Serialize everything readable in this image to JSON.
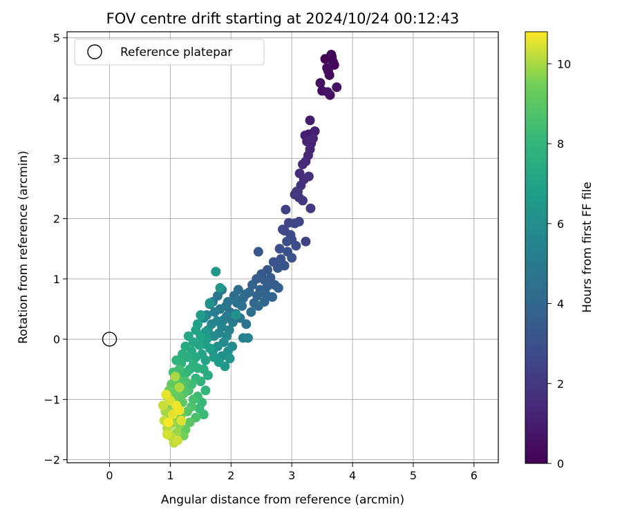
{
  "chart_data": {
    "type": "scatter",
    "title": "FOV centre drift starting at 2024/10/24 00:12:43",
    "xlabel": "Angular distance from reference (arcmin)",
    "ylabel": "Rotation from reference (arcmin)",
    "xlim": [
      -0.7,
      6.4
    ],
    "ylim": [
      -2.05,
      5.1
    ],
    "xticks": [
      0,
      1,
      2,
      3,
      4,
      5,
      6
    ],
    "yticks": [
      -2,
      -1,
      0,
      1,
      2,
      3,
      4,
      5
    ],
    "grid": true,
    "legend": {
      "position": "top-left",
      "entries": [
        "Reference platepar"
      ]
    },
    "reference_point": {
      "x": 0,
      "y": 0,
      "label": "Reference platepar"
    },
    "colorbar": {
      "label": "Hours from first FF file",
      "range": [
        0,
        10.8
      ],
      "ticks": [
        0,
        2,
        4,
        6,
        8,
        10
      ],
      "colormap": "viridis"
    },
    "points": [
      {
        "x": 3.55,
        "y": 4.65,
        "t": 0.0
      },
      {
        "x": 3.65,
        "y": 4.72,
        "t": 0.1
      },
      {
        "x": 3.7,
        "y": 4.55,
        "t": 0.15
      },
      {
        "x": 3.6,
        "y": 4.45,
        "t": 0.25
      },
      {
        "x": 3.68,
        "y": 4.6,
        "t": 0.3
      },
      {
        "x": 3.62,
        "y": 4.38,
        "t": 0.35
      },
      {
        "x": 3.58,
        "y": 4.5,
        "t": 0.4
      },
      {
        "x": 3.47,
        "y": 4.25,
        "t": 0.45
      },
      {
        "x": 3.5,
        "y": 4.12,
        "t": 0.5
      },
      {
        "x": 3.63,
        "y": 4.05,
        "t": 0.55
      },
      {
        "x": 3.74,
        "y": 4.18,
        "t": 0.6
      },
      {
        "x": 3.66,
        "y": 4.68,
        "t": 0.2
      },
      {
        "x": 3.59,
        "y": 4.1,
        "t": 0.65
      },
      {
        "x": 3.3,
        "y": 3.63,
        "t": 0.9
      },
      {
        "x": 3.28,
        "y": 3.4,
        "t": 1.0
      },
      {
        "x": 3.22,
        "y": 3.38,
        "t": 1.05
      },
      {
        "x": 3.38,
        "y": 3.45,
        "t": 1.1
      },
      {
        "x": 3.32,
        "y": 3.25,
        "t": 1.15
      },
      {
        "x": 3.25,
        "y": 3.28,
        "t": 1.2
      },
      {
        "x": 3.3,
        "y": 3.15,
        "t": 1.25
      },
      {
        "x": 3.35,
        "y": 3.33,
        "t": 1.3
      },
      {
        "x": 3.27,
        "y": 3.05,
        "t": 1.35
      },
      {
        "x": 3.23,
        "y": 2.95,
        "t": 1.45
      },
      {
        "x": 3.18,
        "y": 2.9,
        "t": 1.5
      },
      {
        "x": 3.13,
        "y": 2.75,
        "t": 1.55
      },
      {
        "x": 3.2,
        "y": 2.65,
        "t": 1.6
      },
      {
        "x": 3.28,
        "y": 2.7,
        "t": 1.7
      },
      {
        "x": 3.15,
        "y": 2.55,
        "t": 1.75
      },
      {
        "x": 3.1,
        "y": 2.45,
        "t": 1.85
      },
      {
        "x": 3.05,
        "y": 2.4,
        "t": 1.9
      },
      {
        "x": 3.12,
        "y": 2.35,
        "t": 1.95
      },
      {
        "x": 3.18,
        "y": 2.3,
        "t": 2.0
      },
      {
        "x": 3.08,
        "y": 2.45,
        "t": 2.05
      },
      {
        "x": 3.31,
        "y": 2.17,
        "t": 2.1
      },
      {
        "x": 2.9,
        "y": 2.15,
        "t": 2.3
      },
      {
        "x": 3.23,
        "y": 1.62,
        "t": 2.4
      },
      {
        "x": 2.95,
        "y": 1.93,
        "t": 2.5
      },
      {
        "x": 3.05,
        "y": 1.92,
        "t": 2.55
      },
      {
        "x": 3.12,
        "y": 1.95,
        "t": 2.6
      },
      {
        "x": 2.88,
        "y": 1.8,
        "t": 2.65
      },
      {
        "x": 2.85,
        "y": 1.82,
        "t": 2.7
      },
      {
        "x": 2.98,
        "y": 1.73,
        "t": 2.75
      },
      {
        "x": 3.0,
        "y": 1.65,
        "t": 2.8
      },
      {
        "x": 2.92,
        "y": 1.62,
        "t": 2.85
      },
      {
        "x": 3.07,
        "y": 1.55,
        "t": 2.9
      },
      {
        "x": 2.8,
        "y": 1.5,
        "t": 2.95
      },
      {
        "x": 2.93,
        "y": 1.45,
        "t": 3.0
      },
      {
        "x": 3.0,
        "y": 1.35,
        "t": 3.05
      },
      {
        "x": 2.82,
        "y": 1.33,
        "t": 3.1
      },
      {
        "x": 2.7,
        "y": 1.28,
        "t": 3.15
      },
      {
        "x": 2.88,
        "y": 1.22,
        "t": 3.2
      },
      {
        "x": 2.77,
        "y": 1.18,
        "t": 3.25
      },
      {
        "x": 2.6,
        "y": 1.15,
        "t": 3.3
      },
      {
        "x": 2.45,
        "y": 1.45,
        "t": 3.35
      },
      {
        "x": 2.5,
        "y": 1.08,
        "t": 3.4
      },
      {
        "x": 2.65,
        "y": 1.02,
        "t": 3.45
      },
      {
        "x": 2.55,
        "y": 0.98,
        "t": 3.5
      },
      {
        "x": 2.42,
        "y": 1.0,
        "t": 3.55
      },
      {
        "x": 2.72,
        "y": 0.9,
        "t": 3.6
      },
      {
        "x": 2.78,
        "y": 0.85,
        "t": 3.65
      },
      {
        "x": 2.6,
        "y": 0.88,
        "t": 3.7
      },
      {
        "x": 2.48,
        "y": 0.82,
        "t": 3.75
      },
      {
        "x": 2.35,
        "y": 0.9,
        "t": 3.8
      },
      {
        "x": 2.57,
        "y": 0.75,
        "t": 3.85
      },
      {
        "x": 2.43,
        "y": 0.72,
        "t": 3.9
      },
      {
        "x": 2.3,
        "y": 0.78,
        "t": 3.95
      },
      {
        "x": 2.68,
        "y": 0.7,
        "t": 4.0
      },
      {
        "x": 2.55,
        "y": 0.62,
        "t": 4.05
      },
      {
        "x": 2.38,
        "y": 0.6,
        "t": 4.1
      },
      {
        "x": 2.25,
        "y": 0.75,
        "t": 4.15
      },
      {
        "x": 2.45,
        "y": 0.55,
        "t": 4.2
      },
      {
        "x": 2.2,
        "y": 0.68,
        "t": 4.25
      },
      {
        "x": 2.12,
        "y": 0.82,
        "t": 4.3
      },
      {
        "x": 2.05,
        "y": 0.72,
        "t": 4.35
      },
      {
        "x": 2.33,
        "y": 0.45,
        "t": 4.4
      },
      {
        "x": 2.18,
        "y": 0.55,
        "t": 4.45
      },
      {
        "x": 2.1,
        "y": 0.6,
        "t": 4.5
      },
      {
        "x": 2.25,
        "y": 0.25,
        "t": 4.55
      },
      {
        "x": 2.08,
        "y": 0.42,
        "t": 4.6
      },
      {
        "x": 1.95,
        "y": 0.62,
        "t": 4.65
      },
      {
        "x": 1.98,
        "y": 0.45,
        "t": 4.7
      },
      {
        "x": 2.15,
        "y": 0.35,
        "t": 4.75
      },
      {
        "x": 1.92,
        "y": 0.55,
        "t": 4.8
      },
      {
        "x": 1.85,
        "y": 0.82,
        "t": 4.85
      },
      {
        "x": 1.78,
        "y": 0.72,
        "t": 4.9
      },
      {
        "x": 1.7,
        "y": 0.62,
        "t": 4.95
      },
      {
        "x": 1.82,
        "y": 0.5,
        "t": 5.0
      },
      {
        "x": 1.93,
        "y": 0.38,
        "t": 5.05
      },
      {
        "x": 2.03,
        "y": 0.28,
        "t": 5.1
      },
      {
        "x": 1.73,
        "y": 0.45,
        "t": 5.15
      },
      {
        "x": 1.65,
        "y": 0.58,
        "t": 5.2
      },
      {
        "x": 1.88,
        "y": 0.32,
        "t": 5.25
      },
      {
        "x": 1.97,
        "y": 0.15,
        "t": 5.3
      },
      {
        "x": 2.2,
        "y": 0.02,
        "t": 5.35
      },
      {
        "x": 2.28,
        "y": 0.02,
        "t": 5.4
      },
      {
        "x": 1.6,
        "y": 0.4,
        "t": 5.45
      },
      {
        "x": 1.77,
        "y": 0.3,
        "t": 5.5
      },
      {
        "x": 1.85,
        "y": 0.2,
        "t": 5.55
      },
      {
        "x": 1.68,
        "y": 0.25,
        "t": 5.6
      },
      {
        "x": 1.8,
        "y": 0.1,
        "t": 5.65
      },
      {
        "x": 1.93,
        "y": 0.05,
        "t": 5.7
      },
      {
        "x": 1.55,
        "y": 0.35,
        "t": 5.75
      },
      {
        "x": 1.72,
        "y": 0.05,
        "t": 5.8
      },
      {
        "x": 1.88,
        "y": -0.05,
        "t": 5.85
      },
      {
        "x": 2.02,
        "y": -0.12,
        "t": 5.9
      },
      {
        "x": 1.62,
        "y": 0.15,
        "t": 5.95
      },
      {
        "x": 1.95,
        "y": -0.2,
        "t": 6.0
      },
      {
        "x": 1.78,
        "y": -0.12,
        "t": 6.05
      },
      {
        "x": 1.85,
        "y": -0.28,
        "t": 6.1
      },
      {
        "x": 1.7,
        "y": -0.2,
        "t": 6.15
      },
      {
        "x": 2.08,
        "y": 0.4,
        "t": 6.2
      },
      {
        "x": 1.98,
        "y": -0.32,
        "t": 6.25
      },
      {
        "x": 1.65,
        "y": 0.6,
        "t": 6.3
      },
      {
        "x": 1.75,
        "y": 1.12,
        "t": 6.35
      },
      {
        "x": 1.82,
        "y": 0.85,
        "t": 6.4
      },
      {
        "x": 1.58,
        "y": 0.12,
        "t": 6.45
      },
      {
        "x": 1.9,
        "y": -0.45,
        "t": 6.5
      },
      {
        "x": 1.8,
        "y": -0.38,
        "t": 6.55
      },
      {
        "x": 1.72,
        "y": -0.3,
        "t": 6.6
      },
      {
        "x": 1.5,
        "y": 0.4,
        "t": 6.65
      },
      {
        "x": 1.6,
        "y": 0.0,
        "t": 6.7
      },
      {
        "x": 1.55,
        "y": -0.08,
        "t": 6.75
      },
      {
        "x": 1.65,
        "y": -0.15,
        "t": 6.8
      },
      {
        "x": 1.45,
        "y": 0.25,
        "t": 6.9
      },
      {
        "x": 1.5,
        "y": 0.05,
        "t": 6.95
      },
      {
        "x": 1.42,
        "y": 0.15,
        "t": 7.0
      },
      {
        "x": 1.58,
        "y": -0.35,
        "t": 7.05
      },
      {
        "x": 1.52,
        "y": -0.25,
        "t": 7.1
      },
      {
        "x": 1.48,
        "y": -0.1,
        "t": 7.15
      },
      {
        "x": 1.38,
        "y": -0.05,
        "t": 7.2
      },
      {
        "x": 1.3,
        "y": 0.05,
        "t": 7.25
      },
      {
        "x": 1.35,
        "y": -0.2,
        "t": 7.3
      },
      {
        "x": 1.42,
        "y": -0.3,
        "t": 7.35
      },
      {
        "x": 1.25,
        "y": -0.12,
        "t": 7.4
      },
      {
        "x": 1.62,
        "y": -0.6,
        "t": 7.45
      },
      {
        "x": 1.55,
        "y": -0.5,
        "t": 7.5
      },
      {
        "x": 1.28,
        "y": -0.3,
        "t": 7.55
      },
      {
        "x": 1.2,
        "y": -0.25,
        "t": 7.6
      },
      {
        "x": 1.45,
        "y": -0.48,
        "t": 7.65
      },
      {
        "x": 1.38,
        "y": -0.42,
        "t": 7.7
      },
      {
        "x": 1.32,
        "y": -0.5,
        "t": 7.75
      },
      {
        "x": 1.5,
        "y": -0.7,
        "t": 7.8
      },
      {
        "x": 1.18,
        "y": -0.4,
        "t": 7.85
      },
      {
        "x": 1.1,
        "y": -0.35,
        "t": 7.9
      },
      {
        "x": 1.27,
        "y": -0.55,
        "t": 7.95
      },
      {
        "x": 1.58,
        "y": -0.85,
        "t": 8.0
      },
      {
        "x": 1.42,
        "y": -0.65,
        "t": 8.05
      },
      {
        "x": 1.22,
        "y": -0.6,
        "t": 8.1
      },
      {
        "x": 1.52,
        "y": -1.05,
        "t": 8.15
      },
      {
        "x": 1.48,
        "y": -1.15,
        "t": 8.2
      },
      {
        "x": 1.55,
        "y": -1.25,
        "t": 8.25
      },
      {
        "x": 1.45,
        "y": -0.95,
        "t": 8.3
      },
      {
        "x": 1.35,
        "y": -0.75,
        "t": 8.35
      },
      {
        "x": 1.15,
        "y": -0.5,
        "t": 8.4
      },
      {
        "x": 1.05,
        "y": -0.55,
        "t": 8.45
      },
      {
        "x": 1.38,
        "y": -1.0,
        "t": 8.5
      },
      {
        "x": 1.3,
        "y": -0.85,
        "t": 8.55
      },
      {
        "x": 1.42,
        "y": -1.3,
        "t": 8.6
      },
      {
        "x": 1.25,
        "y": -0.7,
        "t": 8.65
      },
      {
        "x": 1.12,
        "y": -0.65,
        "t": 8.7
      },
      {
        "x": 1.35,
        "y": -1.12,
        "t": 8.75
      },
      {
        "x": 1.22,
        "y": -0.9,
        "t": 8.8
      },
      {
        "x": 1.18,
        "y": -0.78,
        "t": 8.85
      },
      {
        "x": 1.28,
        "y": -1.2,
        "t": 8.9
      },
      {
        "x": 1.08,
        "y": -0.7,
        "t": 8.95
      },
      {
        "x": 1.32,
        "y": -1.38,
        "t": 9.0
      },
      {
        "x": 1.2,
        "y": -1.05,
        "t": 9.05
      },
      {
        "x": 1.15,
        "y": -0.95,
        "t": 9.1
      },
      {
        "x": 1.02,
        "y": -0.75,
        "t": 9.15
      },
      {
        "x": 1.25,
        "y": -1.5,
        "t": 9.2
      },
      {
        "x": 1.1,
        "y": -0.88,
        "t": 9.25
      },
      {
        "x": 1.18,
        "y": -1.25,
        "t": 9.3
      },
      {
        "x": 1.05,
        "y": -1.0,
        "t": 9.35
      },
      {
        "x": 0.98,
        "y": -0.85,
        "t": 9.4
      },
      {
        "x": 1.22,
        "y": -1.6,
        "t": 9.45
      },
      {
        "x": 1.12,
        "y": -1.15,
        "t": 9.5
      },
      {
        "x": 1.08,
        "y": -1.3,
        "t": 9.55
      },
      {
        "x": 1.0,
        "y": -1.1,
        "t": 9.6
      },
      {
        "x": 0.95,
        "y": -0.95,
        "t": 9.65
      },
      {
        "x": 1.15,
        "y": -1.42,
        "t": 9.7
      },
      {
        "x": 1.05,
        "y": -1.2,
        "t": 9.75
      },
      {
        "x": 0.98,
        "y": -1.28,
        "t": 9.8
      },
      {
        "x": 1.1,
        "y": -1.55,
        "t": 9.85
      },
      {
        "x": 1.02,
        "y": -1.4,
        "t": 9.9
      },
      {
        "x": 0.92,
        "y": -1.2,
        "t": 9.95
      },
      {
        "x": 1.08,
        "y": -0.62,
        "t": 10.0
      },
      {
        "x": 1.15,
        "y": -0.8,
        "t": 10.05
      },
      {
        "x": 0.95,
        "y": -1.48,
        "t": 10.1
      },
      {
        "x": 1.02,
        "y": -1.62,
        "t": 10.15
      },
      {
        "x": 1.06,
        "y": -1.72,
        "t": 10.2
      },
      {
        "x": 0.9,
        "y": -1.35,
        "t": 10.25
      },
      {
        "x": 0.88,
        "y": -1.1,
        "t": 10.3
      },
      {
        "x": 1.12,
        "y": -1.68,
        "t": 10.35
      },
      {
        "x": 0.95,
        "y": -1.58,
        "t": 10.4
      },
      {
        "x": 1.0,
        "y": -1.02,
        "t": 10.45
      },
      {
        "x": 1.18,
        "y": -1.35,
        "t": 10.5
      },
      {
        "x": 1.04,
        "y": -1.25,
        "t": 10.55
      },
      {
        "x": 0.93,
        "y": -0.92,
        "t": 10.6
      },
      {
        "x": 1.1,
        "y": -1.1,
        "t": 10.65
      },
      {
        "x": 1.15,
        "y": -1.18,
        "t": 10.7
      },
      {
        "x": 0.97,
        "y": -1.38,
        "t": 10.75
      }
    ]
  }
}
